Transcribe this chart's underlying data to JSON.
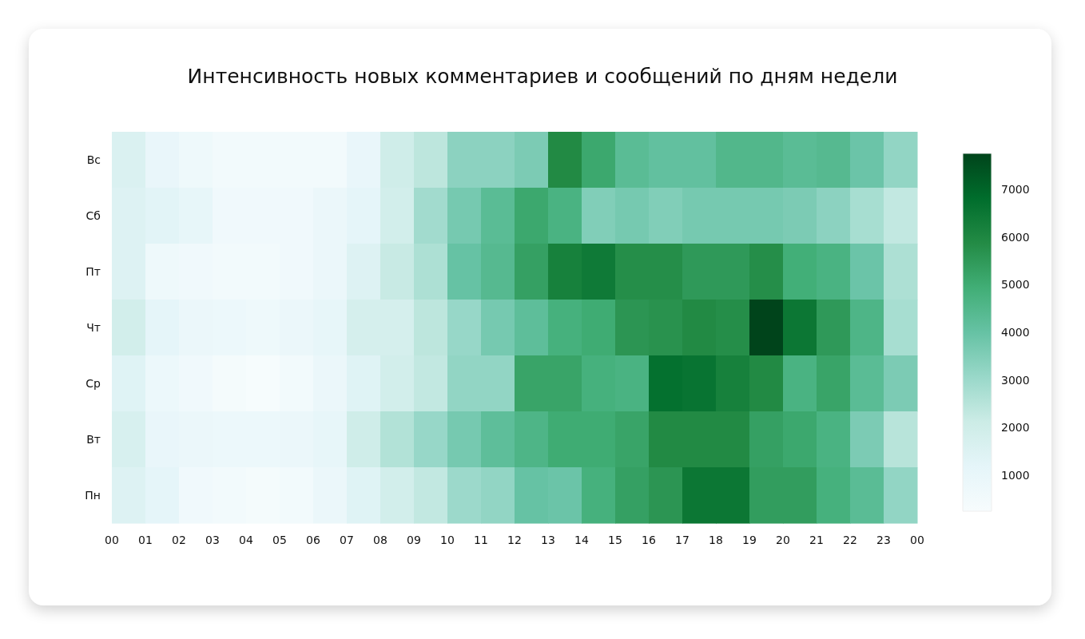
{
  "chart_data": {
    "type": "heatmap",
    "title": "Интенсивность новых комментариев и сообщений по дням недели",
    "x": [
      0.5,
      1.5,
      2.5,
      3.5,
      4.5,
      5.5,
      6.5,
      7.5,
      8.5,
      9.5,
      10.5,
      11.5,
      12.5,
      13.5,
      14.5,
      15.5,
      16.5,
      17.5,
      18.5,
      19.5,
      20.5,
      21.5,
      22.5,
      23.5
    ],
    "xlim": [
      0,
      24
    ],
    "xticks": [
      {
        "value": 0,
        "label": "00"
      },
      {
        "value": 1,
        "label": "01"
      },
      {
        "value": 2,
        "label": "02"
      },
      {
        "value": 3,
        "label": "03"
      },
      {
        "value": 4,
        "label": "04"
      },
      {
        "value": 5,
        "label": "05"
      },
      {
        "value": 6,
        "label": "06"
      },
      {
        "value": 7,
        "label": "07"
      },
      {
        "value": 8,
        "label": "08"
      },
      {
        "value": 9,
        "label": "09"
      },
      10,
      11,
      12,
      13,
      14,
      15,
      16,
      17,
      18,
      19,
      20,
      21,
      22,
      23,
      {
        "value": 24,
        "label": "00"
      }
    ],
    "y_categories": [
      "Вс",
      "Сб",
      "Пт",
      "Чт",
      "Ср",
      "Вт",
      "Пн"
    ],
    "cells": [
      [
        1600,
        1000,
        700,
        500,
        500,
        500,
        500,
        1000,
        2000,
        2400,
        3300,
        3300,
        3600,
        5900,
        5100,
        4300,
        4100,
        4100,
        4500,
        4500,
        4300,
        4400,
        3900,
        3200
      ],
      [
        1500,
        1300,
        1100,
        600,
        600,
        600,
        900,
        1200,
        1900,
        2900,
        3700,
        4300,
        5100,
        4700,
        3500,
        3700,
        3500,
        3700,
        3700,
        3700,
        3600,
        3300,
        2800,
        2300
      ],
      [
        1500,
        700,
        600,
        500,
        500,
        600,
        900,
        1500,
        2200,
        2700,
        4000,
        4400,
        5300,
        6200,
        6400,
        5800,
        5800,
        5500,
        5500,
        5800,
        4900,
        4700,
        3900,
        2700
      ],
      [
        1900,
        1200,
        900,
        800,
        700,
        900,
        1100,
        1800,
        1800,
        2400,
        3100,
        3700,
        4200,
        4800,
        5000,
        5600,
        5700,
        5900,
        5800,
        7750,
        6500,
        5500,
        4600,
        2800
      ],
      [
        1400,
        800,
        600,
        400,
        300,
        500,
        900,
        1400,
        1900,
        2300,
        3200,
        3200,
        5200,
        5200,
        4800,
        4700,
        6700,
        6600,
        6200,
        5900,
        4700,
        5200,
        4300,
        3600
      ],
      [
        1700,
        1000,
        900,
        800,
        800,
        900,
        1100,
        2000,
        2600,
        3100,
        3700,
        4200,
        4600,
        5000,
        5000,
        5200,
        5900,
        5900,
        5900,
        5300,
        5100,
        4700,
        3600,
        2500
      ],
      [
        1500,
        1200,
        600,
        500,
        400,
        500,
        900,
        1400,
        1900,
        2300,
        3000,
        3200,
        4000,
        3900,
        4800,
        5300,
        5600,
        6500,
        6500,
        5400,
        5400,
        4800,
        4300,
        3200
      ]
    ],
    "clim": [
      250,
      7750
    ],
    "cticks": [
      1000,
      2000,
      3000,
      4000,
      5000,
      6000,
      7000
    ]
  }
}
